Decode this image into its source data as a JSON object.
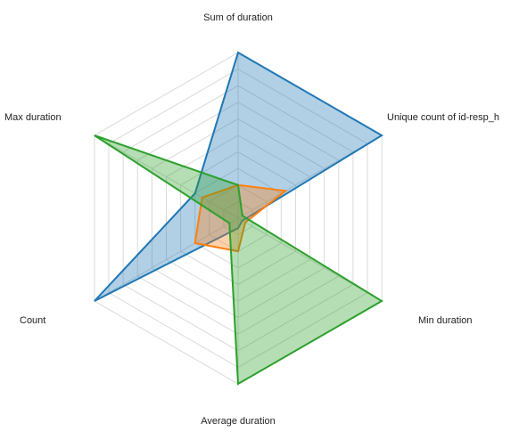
{
  "chart_data": {
    "type": "radar",
    "title": "",
    "axes": [
      "Sum of duration",
      "Unique count of id-resp_h",
      "Min duration",
      "Average duration",
      "Count",
      "Max duration"
    ],
    "range": [
      0,
      1
    ],
    "grid_levels": 10,
    "grid": true,
    "legend": "none",
    "series": [
      {
        "color": "#1f77b4",
        "values": [
          1.0,
          1.0,
          0.03,
          0.06,
          1.0,
          0.3
        ]
      },
      {
        "color": "#ff7f0e",
        "values": [
          0.2,
          0.33,
          0.05,
          0.2,
          0.3,
          0.25
        ]
      },
      {
        "color": "#2ca02c",
        "values": [
          0.2,
          0.03,
          1.0,
          1.0,
          0.06,
          1.0
        ]
      }
    ]
  }
}
